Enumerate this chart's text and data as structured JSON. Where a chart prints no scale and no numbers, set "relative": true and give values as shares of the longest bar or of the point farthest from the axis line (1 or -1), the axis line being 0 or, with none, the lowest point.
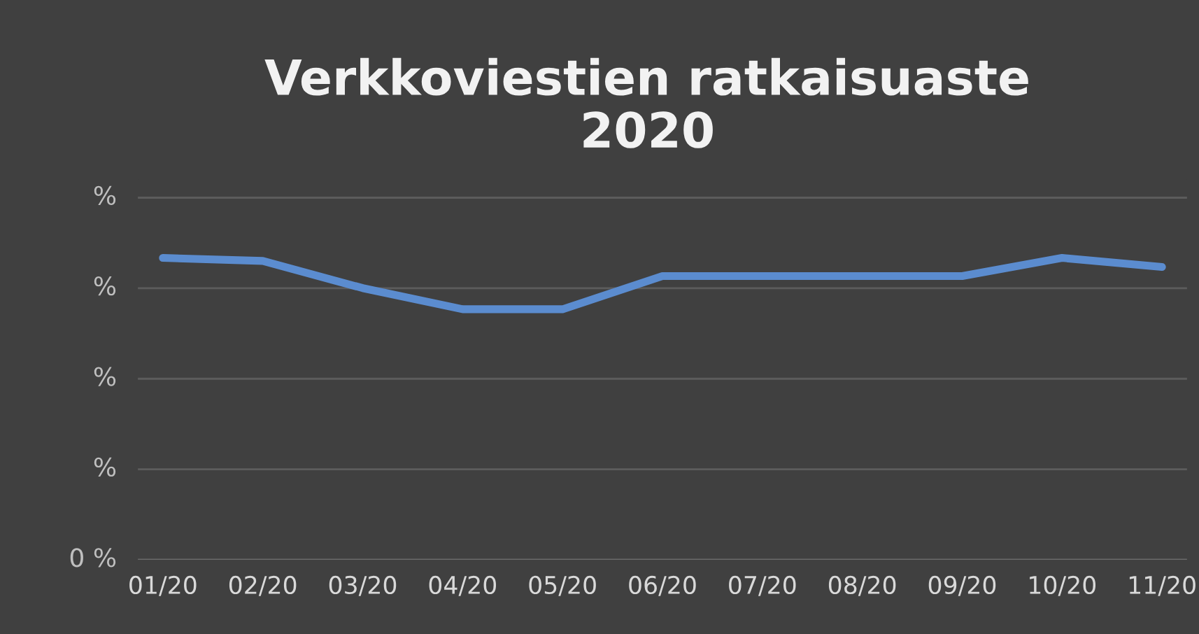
{
  "chart_data": {
    "type": "line",
    "title": "Verkkoviestien ratkaisuaste\n2020",
    "relative": true,
    "categories": [
      "01/20",
      "02/20",
      "03/20",
      "04/20",
      "05/20",
      "06/20",
      "07/20",
      "08/20",
      "09/20",
      "10/20",
      "11/20"
    ],
    "series": [
      {
        "color": "#5b8ccf",
        "values": [
          1,
          0.99,
          0.9,
          0.83,
          0.83,
          0.94,
          0.94,
          0.94,
          0.94,
          1,
          0.97
        ]
      }
    ],
    "annotations": [
      "0 %",
      "%",
      "%",
      "%",
      "%"
    ],
    "grid": "y",
    "marker": "none",
    "line_style": "solid"
  }
}
